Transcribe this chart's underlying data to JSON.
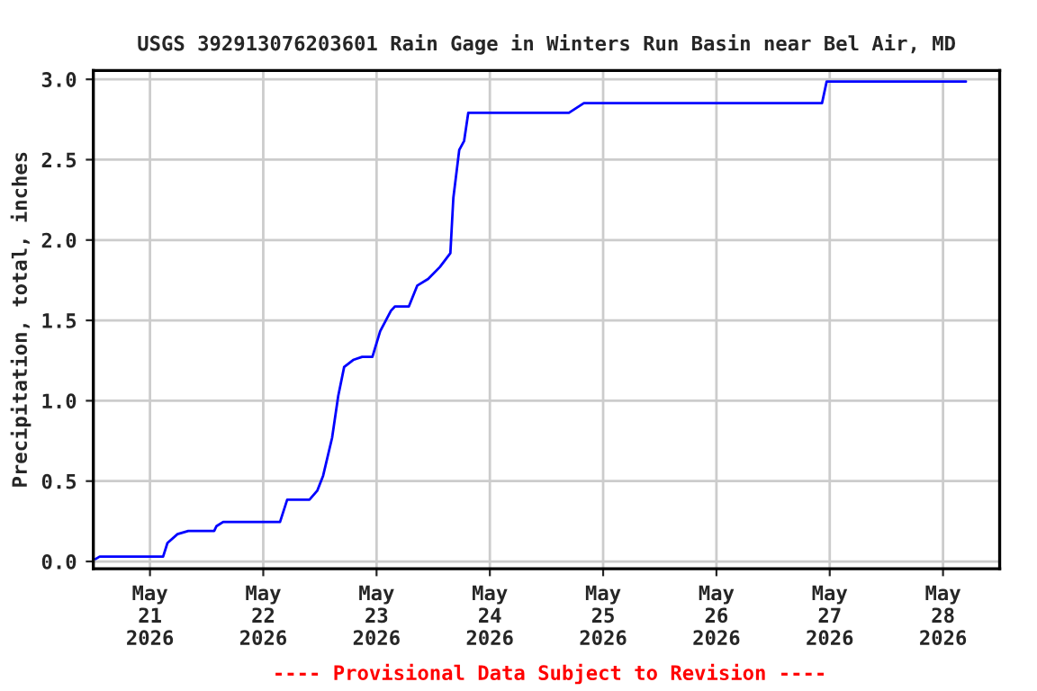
{
  "chart_data": {
    "type": "line",
    "title": "USGS 392913076203601 Rain Gage in Winters Run Basin near Bel Air, MD",
    "ylabel": "Precipitation, total, inches",
    "x": [
      "2026-05-20T12:27",
      "2026-05-20T13:20",
      "2026-05-21T02:47",
      "2026-05-21T03:42",
      "2026-05-21T05:50",
      "2026-05-21T08:07",
      "2026-05-21T13:36",
      "2026-05-21T14:06",
      "2026-05-21T15:30",
      "2026-05-22T03:33",
      "2026-05-22T05:04",
      "2026-05-22T09:47",
      "2026-05-22T11:26",
      "2026-05-22T12:41",
      "2026-05-22T14:35",
      "2026-05-22T15:53",
      "2026-05-22T17:08",
      "2026-05-22T19:03",
      "2026-05-22T20:57",
      "2026-05-22T23:07",
      "2026-05-23T00:46",
      "2026-05-23T03:03",
      "2026-05-23T03:55",
      "2026-05-23T06:51",
      "2026-05-23T08:38",
      "2026-05-23T10:56",
      "2026-05-23T13:26",
      "2026-05-23T15:38",
      "2026-05-23T16:16",
      "2026-05-23T17:31",
      "2026-05-23T18:33",
      "2026-05-23T19:26",
      "2026-05-24T16:45",
      "2026-05-24T19:55",
      "2026-05-26T22:22",
      "2026-05-26T23:21",
      "2026-05-28T04:51"
    ],
    "series": [
      {
        "color": "#0000ff",
        "values": [
          0.015,
          0.03,
          0.03,
          0.115,
          0.17,
          0.19,
          0.19,
          0.22,
          0.246,
          0.246,
          0.384,
          0.384,
          0.44,
          0.534,
          0.77,
          1.03,
          1.21,
          1.254,
          1.273,
          1.273,
          1.433,
          1.56,
          1.587,
          1.587,
          1.717,
          1.758,
          1.833,
          1.918,
          2.262,
          2.561,
          2.617,
          2.792,
          2.792,
          2.852,
          2.852,
          2.986,
          2.986
        ]
      }
    ],
    "xlim": [
      "2026-05-20T12:00",
      "2026-05-28T12:00"
    ],
    "xticks": [
      {
        "value": "2026-05-21",
        "label": "May\n21\n2026"
      },
      {
        "value": "2026-05-22",
        "label": "May\n22\n2026"
      },
      {
        "value": "2026-05-23",
        "label": "May\n23\n2026"
      },
      {
        "value": "2026-05-24",
        "label": "May\n24\n2026"
      },
      {
        "value": "2026-05-25",
        "label": "May\n25\n2026"
      },
      {
        "value": "2026-05-26",
        "label": "May\n26\n2026"
      },
      {
        "value": "2026-05-27",
        "label": "May\n27\n2026"
      },
      {
        "value": "2026-05-28",
        "label": "May\n28\n2026"
      }
    ],
    "ylim": [
      -0.045,
      3.055
    ],
    "yticks": [
      {
        "value": 0,
        "label": "0.0"
      },
      {
        "value": 0.5,
        "label": "0.5"
      },
      {
        "value": 1,
        "label": "1.0"
      },
      {
        "value": 1.5,
        "label": "1.5"
      },
      {
        "value": 2,
        "label": "2.0"
      },
      {
        "value": 2.5,
        "label": "2.5"
      },
      {
        "value": 3,
        "label": "3.0"
      }
    ],
    "grid": true,
    "annotations": [
      "---- Provisional Data Subject to Revision ----"
    ]
  }
}
